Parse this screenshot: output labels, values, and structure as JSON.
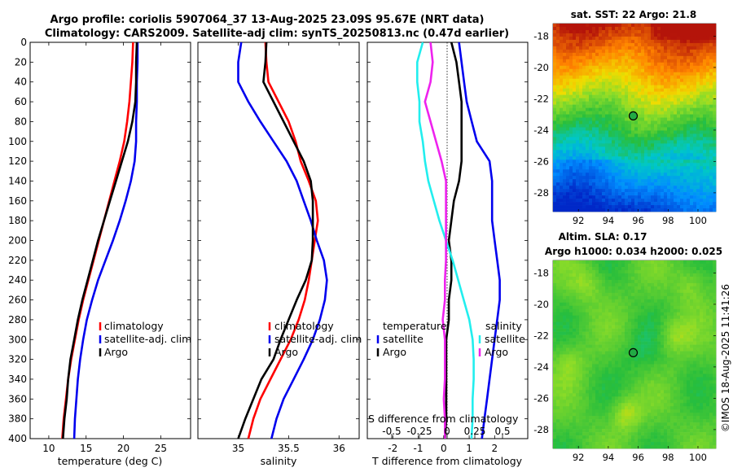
{
  "header": {
    "title_line1": "Argo profile: coriolis 5907064_37 13-Aug-2025 23.09S 95.67E (NRT data)",
    "title_line2": "Climatology: CARS2009. Satellite-adj clim: synTS_20250813.nc (0.47d earlier)"
  },
  "watermark": "©IMOS 18-Aug-2025 11:41:26",
  "colors": {
    "climatology": "#ff0000",
    "satellite": "#0000ee",
    "argo": "#000000",
    "cyan": "#22eeee",
    "magenta": "#ee22ee"
  },
  "chart_data": [
    {
      "name": "temperature-profile",
      "type": "line",
      "xlabel": "temperature (deg C)",
      "ylabel": "",
      "xlim": [
        7.5,
        29
      ],
      "ylim": [
        400,
        0
      ],
      "xticks": [
        10,
        15,
        20,
        25
      ],
      "yticks": [
        0,
        20,
        40,
        60,
        80,
        100,
        120,
        140,
        160,
        180,
        200,
        220,
        240,
        260,
        280,
        300,
        320,
        340,
        360,
        380,
        400
      ],
      "depth": [
        0,
        20,
        40,
        60,
        80,
        100,
        120,
        140,
        160,
        180,
        200,
        220,
        240,
        260,
        280,
        300,
        320,
        340,
        360,
        380,
        400
      ],
      "series": [
        {
          "name": "climatology",
          "values": [
            21.3,
            21.2,
            21.0,
            20.8,
            20.5,
            20.1,
            19.5,
            18.8,
            18.1,
            17.4,
            16.7,
            16.0,
            15.3,
            14.6,
            14.0,
            13.5,
            13.0,
            12.6,
            12.3,
            12.0,
            11.8
          ]
        },
        {
          "name": "satellite-adj. clim",
          "values": [
            21.9,
            21.9,
            21.8,
            21.8,
            21.7,
            21.7,
            21.5,
            21.0,
            20.3,
            19.5,
            18.6,
            17.6,
            16.6,
            15.8,
            15.1,
            14.6,
            14.2,
            13.9,
            13.7,
            13.5,
            13.4
          ]
        },
        {
          "name": "Argo",
          "values": [
            21.8,
            21.7,
            21.7,
            21.6,
            21.2,
            20.6,
            19.8,
            19.0,
            18.2,
            17.4,
            16.6,
            15.9,
            15.2,
            14.5,
            13.9,
            13.4,
            12.9,
            12.6,
            12.4,
            12.1,
            11.9
          ]
        }
      ],
      "legend": [
        "climatology",
        "satellite-adj. clim",
        "Argo"
      ],
      "legend_position": "lower-right"
    },
    {
      "name": "salinity-profile",
      "type": "line",
      "xlabel": "salinity",
      "xlim": [
        34.6,
        36.2
      ],
      "ylim": [
        400,
        0
      ],
      "xticks": [
        35,
        35.5,
        36
      ],
      "depth": [
        0,
        20,
        40,
        60,
        80,
        100,
        120,
        140,
        160,
        180,
        200,
        220,
        240,
        260,
        280,
        300,
        320,
        340,
        360,
        380,
        400
      ],
      "series": [
        {
          "name": "climatology",
          "values": [
            35.27,
            35.28,
            35.3,
            35.4,
            35.5,
            35.57,
            35.62,
            35.7,
            35.77,
            35.79,
            35.76,
            35.73,
            35.7,
            35.66,
            35.6,
            35.52,
            35.42,
            35.32,
            35.22,
            35.15,
            35.1
          ]
        },
        {
          "name": "satellite-adj. clim",
          "values": [
            35.03,
            35.0,
            35.0,
            35.1,
            35.22,
            35.35,
            35.48,
            35.58,
            35.65,
            35.72,
            35.78,
            35.85,
            35.88,
            35.86,
            35.81,
            35.74,
            35.65,
            35.55,
            35.45,
            35.38,
            35.33
          ]
        },
        {
          "name": "Argo",
          "values": [
            35.28,
            35.27,
            35.25,
            35.35,
            35.45,
            35.55,
            35.65,
            35.72,
            35.74,
            35.74,
            35.74,
            35.73,
            35.67,
            35.58,
            35.5,
            35.42,
            35.35,
            35.23,
            35.15,
            35.07,
            35.0
          ]
        }
      ],
      "legend": [
        "climatology",
        "satellite-adj. clim",
        "Argo"
      ],
      "legend_position": "lower-right"
    },
    {
      "name": "difference-profile",
      "type": "line",
      "xlabel": "T difference from climatology",
      "xlabel_top": "S difference from climatology",
      "xlim": [
        -3,
        3.3
      ],
      "ylim": [
        400,
        0
      ],
      "xticks": [
        -2,
        -1,
        0,
        1,
        2
      ],
      "xtick_labels": [
        "-2",
        "-1",
        "0",
        "1",
        "2"
      ],
      "sticks": [
        -0.5,
        -0.25,
        0,
        0.25,
        0.5
      ],
      "stick_labels": [
        "-0.5",
        "-0.25",
        "0",
        "0.25",
        "0.5"
      ],
      "depth": [
        0,
        20,
        40,
        60,
        80,
        100,
        120,
        140,
        160,
        180,
        200,
        220,
        240,
        260,
        280,
        300,
        320,
        340,
        360,
        380,
        400
      ],
      "series": [
        {
          "name": "temperature satellite",
          "values": [
            0.6,
            0.7,
            0.8,
            0.9,
            1.1,
            1.3,
            1.8,
            1.9,
            1.9,
            1.9,
            2.0,
            2.1,
            2.2,
            2.2,
            2.1,
            2.0,
            1.9,
            1.8,
            1.7,
            1.6,
            1.5
          ]
        },
        {
          "name": "temperature Argo",
          "values": [
            0.3,
            0.5,
            0.6,
            0.7,
            0.7,
            0.7,
            0.7,
            0.6,
            0.4,
            0.3,
            0.2,
            0.3,
            0.3,
            0.2,
            0.2,
            0.1,
            0.1,
            0.1,
            0.1,
            0.1,
            0.05
          ]
        },
        {
          "name": "salinity satellite",
          "values": [
            -0.22,
            -0.27,
            -0.27,
            -0.25,
            -0.25,
            -0.22,
            -0.2,
            -0.17,
            -0.12,
            -0.07,
            -0.01,
            0.05,
            0.1,
            0.15,
            0.2,
            0.23,
            0.24,
            0.24,
            0.23,
            0.23,
            0.22
          ]
        },
        {
          "name": "salinity Argo",
          "values": [
            -0.15,
            -0.13,
            -0.15,
            -0.2,
            -0.15,
            -0.1,
            -0.05,
            -0.01,
            -0.01,
            -0.01,
            -0.01,
            -0.01,
            -0.02,
            -0.02,
            -0.04,
            -0.02,
            -0.02,
            -0.02,
            -0.03,
            -0.02,
            -0.02
          ]
        }
      ],
      "legend_left_title": "temperature",
      "legend_right_title": "salinity",
      "legend_left": [
        "satellite",
        "Argo"
      ],
      "legend_right": [
        "satellite",
        "Argo"
      ]
    },
    {
      "name": "sst-map",
      "type": "heatmap",
      "title": "sat. SST: 22 Argo: 21.8",
      "xticks": [
        92,
        94,
        96,
        98,
        100
      ],
      "yticks": [
        -18,
        -20,
        -22,
        -24,
        -26,
        -28
      ],
      "xlim": [
        90.3,
        101.2
      ],
      "ylim": [
        -29.2,
        -17.2
      ],
      "argo_position": {
        "lon": 95.67,
        "lat": -23.09
      }
    },
    {
      "name": "sla-map",
      "type": "heatmap",
      "title": "Altim. SLA: 0.17",
      "subtitle": "Argo h1000: 0.034 h2000: 0.025",
      "xticks": [
        92,
        94,
        96,
        98,
        100
      ],
      "yticks": [
        -18,
        -20,
        -22,
        -24,
        -26,
        -28
      ],
      "xlim": [
        90.3,
        101.2
      ],
      "ylim": [
        -29.2,
        -17.2
      ],
      "argo_position": {
        "lon": 95.67,
        "lat": -23.09
      }
    }
  ]
}
